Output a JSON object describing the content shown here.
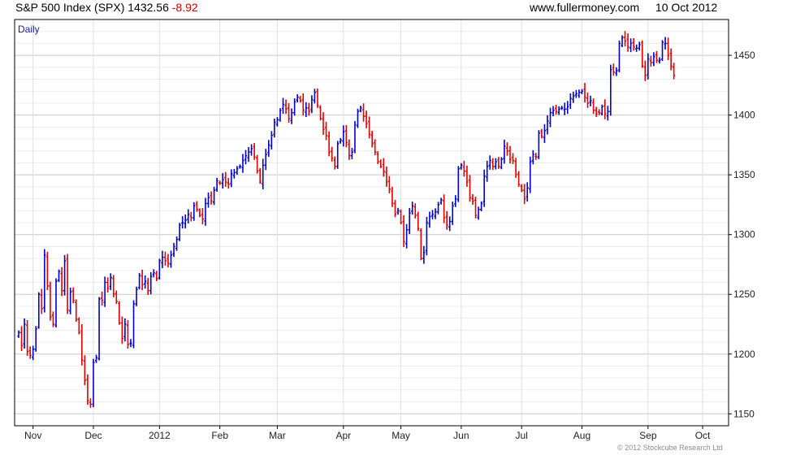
{
  "header": {
    "title": "S&P 500 Index (SPX)",
    "price": "1432.56",
    "change": "-8.92",
    "site": "www.fullermoney.com",
    "date": "10 Oct 2012"
  },
  "footer": {
    "copyright": "© 2012 Stockcube Research Ltd"
  },
  "colors": {
    "up": "#0000cc",
    "down": "#e00000",
    "grid": "#d9d9d9",
    "border": "#000000"
  },
  "chart_data": {
    "type": "ohlc",
    "period_label": "Daily",
    "ylim": [
      1140,
      1480
    ],
    "y_ticks": [
      1150,
      1200,
      1250,
      1300,
      1350,
      1400,
      1450
    ],
    "y_axis_side": "right",
    "grid": true,
    "x_ticks": [
      {
        "label": "Nov",
        "day": 5
      },
      {
        "label": "Dec",
        "day": 26
      },
      {
        "label": "2012",
        "day": 49
      },
      {
        "label": "Feb",
        "day": 70
      },
      {
        "label": "Mar",
        "day": 90
      },
      {
        "label": "Apr",
        "day": 113
      },
      {
        "label": "May",
        "day": 133
      },
      {
        "label": "Jun",
        "day": 154
      },
      {
        "label": "Jul",
        "day": 175
      },
      {
        "label": "Aug",
        "day": 196
      },
      {
        "label": "Sep",
        "day": 219
      },
      {
        "label": "Oct",
        "day": 238
      }
    ],
    "closes": [
      1218,
      1207,
      1225,
      1202,
      1199,
      1204,
      1221,
      1250,
      1238,
      1283,
      1257,
      1231,
      1225,
      1261,
      1269,
      1253,
      1278,
      1237,
      1252,
      1245,
      1229,
      1218,
      1195,
      1178,
      1161,
      1158,
      1193,
      1197,
      1246,
      1245,
      1260,
      1255,
      1264,
      1250,
      1244,
      1226,
      1213,
      1225,
      1208,
      1209,
      1242,
      1254,
      1266,
      1258,
      1261,
      1253,
      1265,
      1268,
      1263,
      1278,
      1281,
      1278,
      1276,
      1283,
      1290,
      1296,
      1308,
      1310,
      1312,
      1317,
      1314,
      1324,
      1321,
      1316,
      1313,
      1326,
      1331,
      1328,
      1337,
      1345,
      1343,
      1346,
      1344,
      1342,
      1351,
      1352,
      1355,
      1357,
      1362,
      1366,
      1369,
      1372,
      1365,
      1353,
      1344,
      1358,
      1367,
      1375,
      1383,
      1394,
      1396,
      1404,
      1409,
      1405,
      1397,
      1402,
      1411,
      1415,
      1412,
      1404,
      1406,
      1403,
      1413,
      1419,
      1408,
      1397,
      1388,
      1383,
      1369,
      1364,
      1357,
      1376,
      1379,
      1386,
      1377,
      1366,
      1369,
      1392,
      1403,
      1406,
      1399,
      1393,
      1384,
      1376,
      1369,
      1361,
      1357,
      1353,
      1344,
      1338,
      1326,
      1317,
      1320,
      1310,
      1294,
      1304,
      1318,
      1324,
      1316,
      1305,
      1280,
      1285,
      1310,
      1315,
      1317,
      1319,
      1325,
      1329,
      1314,
      1308,
      1311,
      1324,
      1330,
      1355,
      1358,
      1353,
      1344,
      1331,
      1328,
      1316,
      1321,
      1326,
      1349,
      1357,
      1362,
      1357,
      1361,
      1357,
      1363,
      1374,
      1370,
      1363,
      1362,
      1350,
      1342,
      1337,
      1330,
      1339,
      1361,
      1367,
      1365,
      1385,
      1382,
      1387,
      1395,
      1402,
      1404,
      1403,
      1405,
      1406,
      1405,
      1407,
      1414,
      1416,
      1418,
      1419,
      1420,
      1415,
      1410,
      1412,
      1404,
      1401,
      1402,
      1407,
      1401,
      1403,
      1438,
      1436,
      1437,
      1460,
      1465,
      1462,
      1457,
      1460,
      1457,
      1456,
      1459,
      1441,
      1433,
      1447,
      1444,
      1449,
      1446,
      1446,
      1461,
      1460,
      1450,
      1441,
      1433
    ]
  }
}
